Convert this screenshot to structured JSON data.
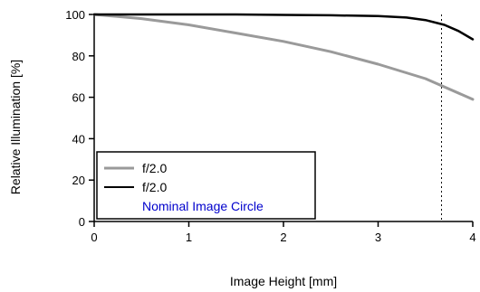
{
  "chart_data": {
    "type": "line",
    "xlabel": "Image Height [mm]",
    "ylabel": "Relative Illumination [%]",
    "xlim": [
      0,
      4
    ],
    "ylim": [
      0,
      100
    ],
    "xticks": [
      "0",
      "1",
      "2",
      "3",
      "4"
    ],
    "yticks": [
      "0",
      "20",
      "40",
      "60",
      "80",
      "100"
    ],
    "grid": false,
    "legend_position": "bottom-left",
    "series": [
      {
        "name": "f/2.0",
        "color": "#9a9a9a",
        "x": [
          0,
          0.5,
          1.0,
          1.5,
          2.0,
          2.5,
          3.0,
          3.5,
          4.0
        ],
        "y": [
          100,
          98,
          95,
          91,
          87,
          82,
          76,
          69,
          59
        ]
      },
      {
        "name": "f/2.0",
        "color": "#000000",
        "x": [
          0,
          0.5,
          1.0,
          1.5,
          2.0,
          2.5,
          3.0,
          3.3,
          3.5,
          3.7,
          3.85,
          4.0
        ],
        "y": [
          100,
          100,
          100,
          100,
          99.8,
          99.6,
          99.2,
          98.5,
          97.3,
          95,
          92,
          88
        ]
      }
    ],
    "annotations": [
      {
        "name": "Nominal Image Circle",
        "x": 3.67,
        "color": "#000000"
      }
    ]
  }
}
